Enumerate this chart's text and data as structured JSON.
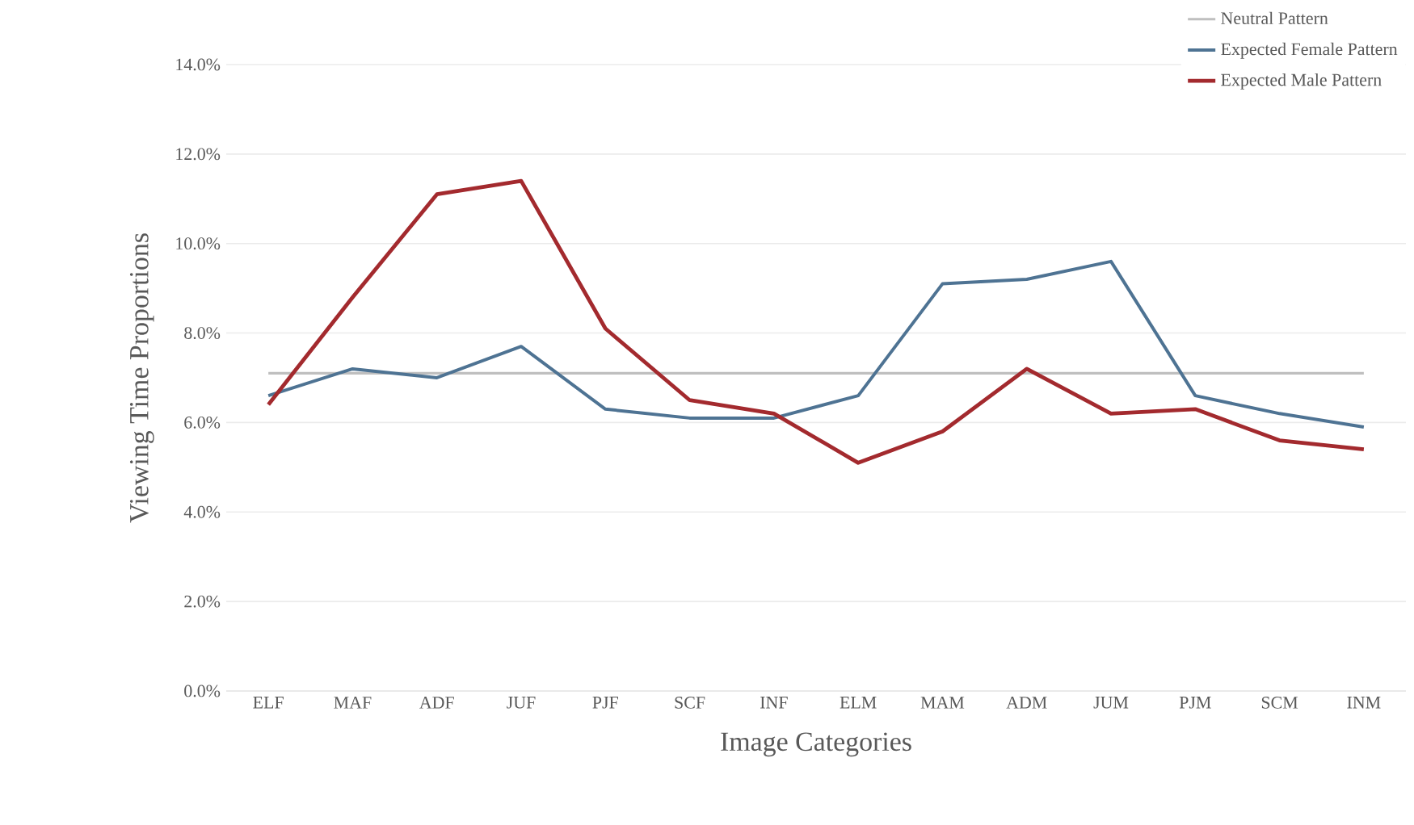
{
  "chart_data": {
    "type": "line",
    "xlabel": "Image Categories",
    "ylabel": "Viewing Time Proportions",
    "categories": [
      "ELF",
      "MAF",
      "ADF",
      "JUF",
      "PJF",
      "SCF",
      "INF",
      "ELM",
      "MAM",
      "ADM",
      "JUM",
      "PJM",
      "SCM",
      "INM"
    ],
    "series": [
      {
        "name": "Neutral Pattern",
        "color": "#bfbfbf",
        "values": [
          7.1,
          7.1,
          7.1,
          7.1,
          7.1,
          7.1,
          7.1,
          7.1,
          7.1,
          7.1,
          7.1,
          7.1,
          7.1,
          7.1
        ]
      },
      {
        "name": "Expected Female Pattern",
        "color": "#4e7393",
        "values": [
          6.6,
          7.2,
          7.0,
          7.7,
          6.3,
          6.1,
          6.1,
          6.6,
          9.1,
          9.2,
          9.6,
          6.6,
          6.2,
          5.9
        ]
      },
      {
        "name": "Expected Male Pattern",
        "color": "#a32a2e",
        "values": [
          6.4,
          8.8,
          11.1,
          11.4,
          8.1,
          6.5,
          6.2,
          5.1,
          5.8,
          7.2,
          6.2,
          6.3,
          5.6,
          5.4
        ]
      }
    ],
    "ylim": [
      0,
      14
    ],
    "yticks": [
      {
        "value": 0,
        "label": "0.0%"
      },
      {
        "value": 2,
        "label": "2.0%"
      },
      {
        "value": 4,
        "label": "4.0%"
      },
      {
        "value": 6,
        "label": "6.0%"
      },
      {
        "value": 8,
        "label": "8.0%"
      },
      {
        "value": 10,
        "label": "10.0%"
      },
      {
        "value": 12,
        "label": "12.0%"
      },
      {
        "value": 14,
        "label": "14.0%"
      }
    ],
    "grid": "y",
    "legend": "top right",
    "marker": "none",
    "line_style": "solid"
  }
}
